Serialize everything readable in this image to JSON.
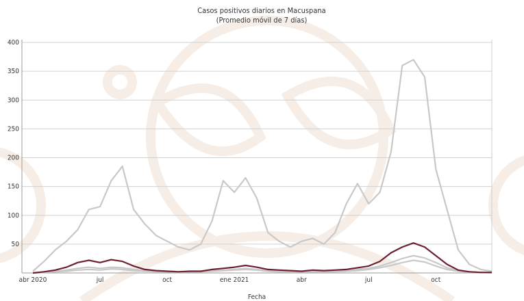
{
  "chart_data": {
    "type": "line",
    "title": "Casos positivos diarios en Macuspana",
    "subtitle": "(Promedio móvil de 7 días)",
    "xlabel": "Fecha",
    "categories": [
      "abr 2020",
      null,
      null,
      null,
      null,
      null,
      "jul",
      null,
      null,
      null,
      null,
      null,
      "oct",
      null,
      null,
      null,
      null,
      null,
      "ene 2021",
      null,
      null,
      null,
      null,
      null,
      "abr",
      null,
      null,
      null,
      null,
      null,
      "jul",
      null,
      null,
      null,
      null,
      null,
      "oct",
      null,
      null,
      null,
      null,
      null
    ],
    "ylim": [
      0,
      400
    ],
    "yticks": [
      50,
      100,
      150,
      200,
      250,
      300,
      350,
      400
    ],
    "grid": true,
    "series": [
      {
        "color": "#c8c8c8",
        "values": [
          3,
          20,
          40,
          55,
          75,
          110,
          115,
          160,
          185,
          110,
          85,
          65,
          55,
          45,
          40,
          50,
          90,
          160,
          140,
          165,
          130,
          70,
          55,
          45,
          55,
          60,
          50,
          70,
          120,
          155,
          120,
          140,
          210,
          360,
          370,
          340,
          180,
          110,
          40,
          15,
          6,
          3
        ]
      },
      {
        "color": "#c8c8c8",
        "values": [
          0,
          1,
          3,
          5,
          8,
          10,
          8,
          10,
          9,
          6,
          4,
          3,
          2,
          2,
          2,
          3,
          4,
          5,
          6,
          8,
          6,
          4,
          3,
          3,
          2,
          3,
          3,
          3,
          4,
          6,
          8,
          12,
          18,
          25,
          30,
          26,
          18,
          9,
          4,
          2,
          1,
          1
        ]
      },
      {
        "color": "#c8c8c8",
        "values": [
          0,
          1,
          2,
          3,
          5,
          6,
          5,
          7,
          6,
          4,
          3,
          2,
          2,
          1,
          2,
          2,
          3,
          4,
          5,
          6,
          5,
          3,
          2,
          2,
          2,
          2,
          2,
          2,
          3,
          4,
          6,
          9,
          13,
          18,
          22,
          19,
          12,
          6,
          3,
          1,
          1,
          0
        ]
      },
      {
        "color": "#6b1f2f",
        "values": [
          0,
          2,
          5,
          10,
          18,
          22,
          18,
          23,
          20,
          12,
          6,
          4,
          3,
          2,
          3,
          3,
          6,
          8,
          10,
          13,
          10,
          6,
          5,
          4,
          3,
          5,
          4,
          5,
          6,
          9,
          12,
          20,
          35,
          45,
          52,
          45,
          30,
          15,
          5,
          2,
          1,
          1
        ]
      }
    ]
  }
}
